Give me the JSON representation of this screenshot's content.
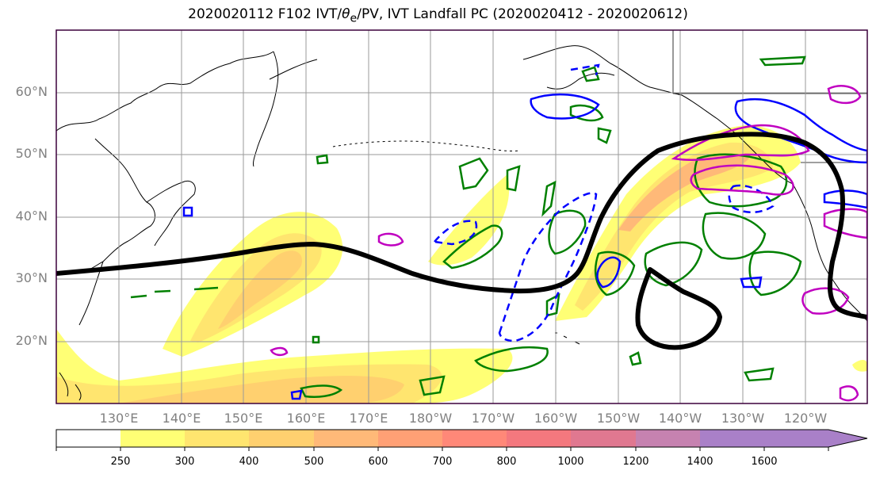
{
  "title": "2020020112 F102 IVT/θe/PV, IVT Landfall PC (2020020412 - 2020020612)",
  "title_parts": {
    "pre": "2020020112 F102 IVT/",
    "theta": "θ",
    "sub": "e",
    "post": "/PV, IVT Landfall PC (2020020412 - 2020020612)"
  },
  "map": {
    "lat_labels": [
      "60°N",
      "50°N",
      "40°N",
      "30°N",
      "20°N"
    ],
    "lon_labels": [
      "130°E",
      "140°E",
      "150°E",
      "160°E",
      "170°E",
      "180°W",
      "170°W",
      "160°W",
      "150°W",
      "140°W",
      "130°W",
      "120°W"
    ],
    "lat_range": [
      10,
      70
    ],
    "lon_range": [
      120,
      250
    ],
    "grid": true
  },
  "colorbar": {
    "levels": [
      "250",
      "300",
      "400",
      "500",
      "600",
      "700",
      "800",
      "1000",
      "1200",
      "1400",
      "1600"
    ],
    "colors": [
      "#ffffff",
      "#ffff75",
      "#ffe56f",
      "#ffd06f",
      "#ffb978",
      "#ffa075",
      "#ff8878",
      "#f4787e",
      "#e07890",
      "#c682b0",
      "#a980c8"
    ],
    "extend": "max"
  },
  "colors": {
    "landfall_contour": "#000000",
    "pv_positive": "#0000ff",
    "theta_e": "#008000",
    "pv_other": "#c000c0",
    "frame": "#3c003c"
  }
}
